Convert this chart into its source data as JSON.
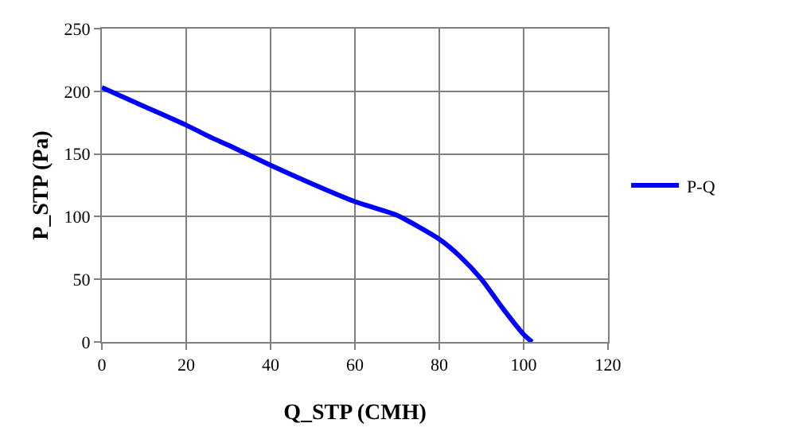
{
  "chart_data": {
    "type": "line",
    "xlabel": "Q_STP (CMH)",
    "ylabel": "P_STP (Pa)",
    "x": [
      0,
      10,
      20,
      26,
      30,
      40,
      50,
      60,
      70,
      80,
      85,
      90,
      95,
      100,
      102
    ],
    "series": [
      {
        "name": "P-Q",
        "color": "#0000ff",
        "values": [
          203,
          188,
          173,
          163,
          157,
          141,
          126,
          112,
          101,
          82,
          68,
          50,
          27,
          6,
          0
        ]
      }
    ],
    "xlim": [
      0,
      120
    ],
    "xticks": [
      0,
      20,
      40,
      60,
      80,
      100,
      120
    ],
    "ylim": [
      0,
      250
    ],
    "yticks": [
      0,
      50,
      100,
      150,
      200,
      250
    ],
    "grid": true,
    "legend": "right",
    "marker": "none",
    "line_style": "solid"
  }
}
